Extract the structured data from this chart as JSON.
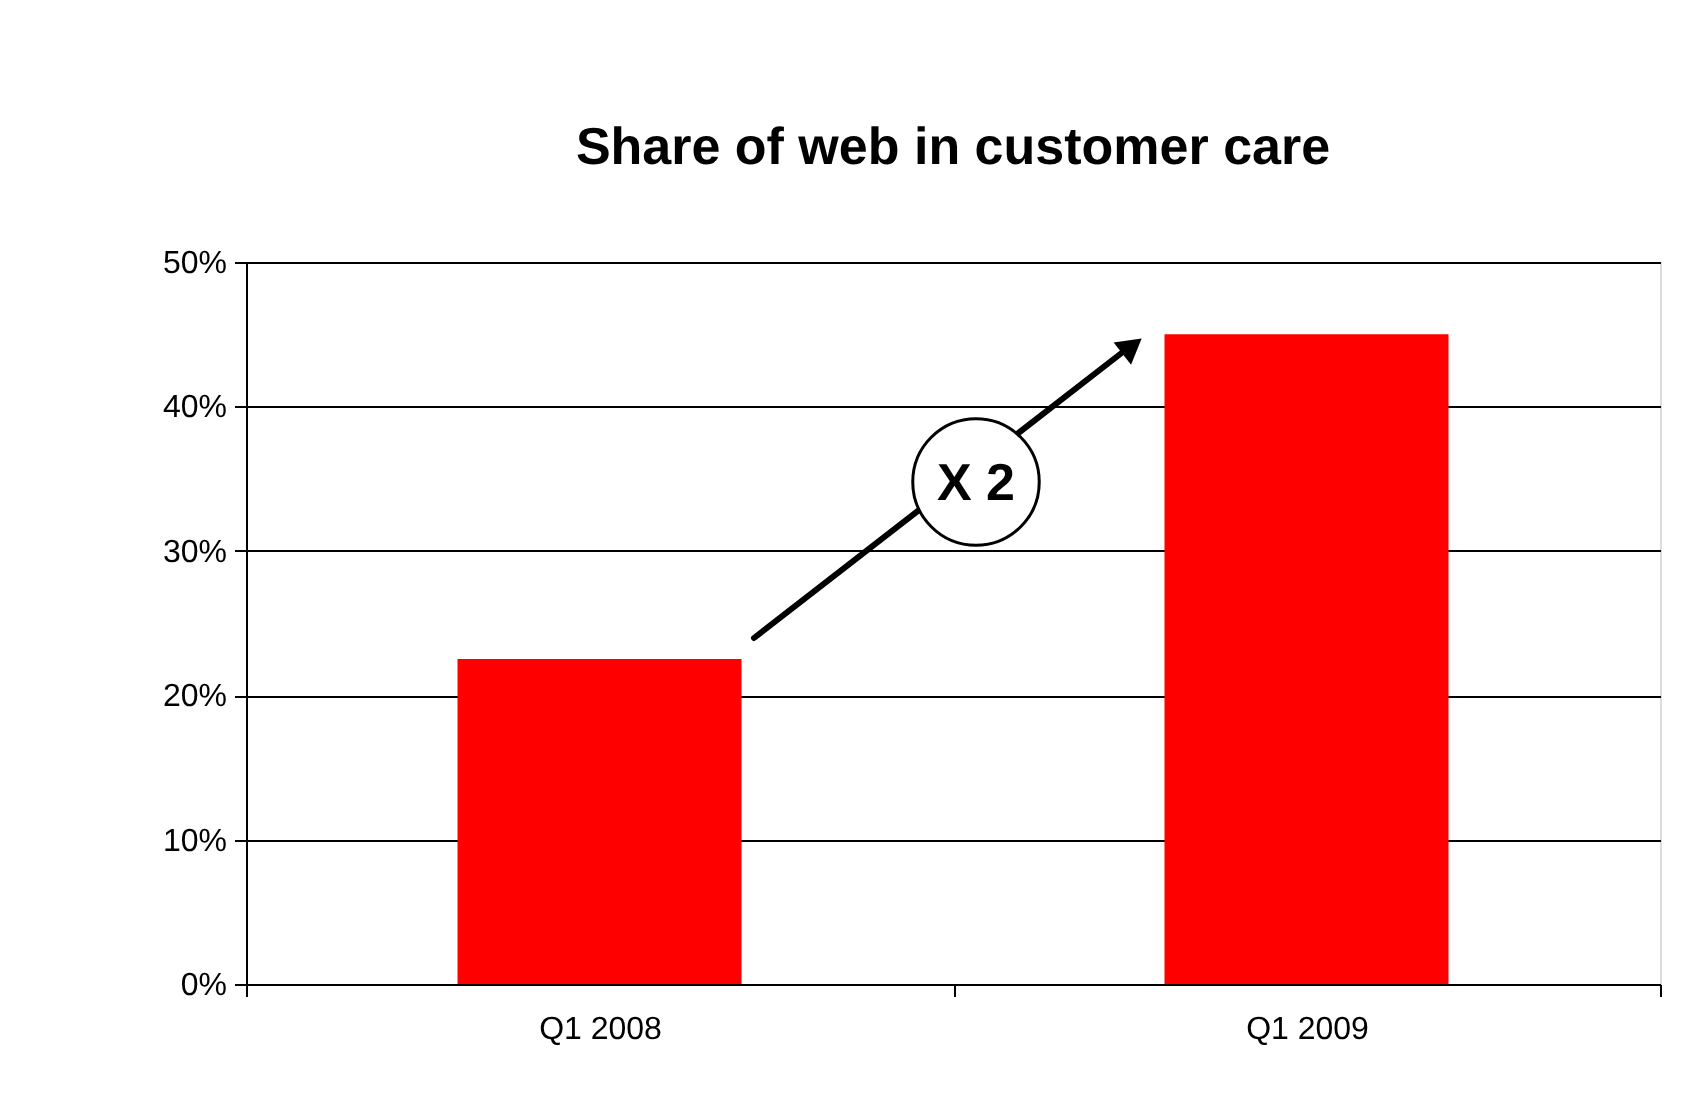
{
  "chart_data": {
    "type": "bar",
    "title": "Share of web in customer care",
    "categories": [
      "Q1 2008",
      "Q1 2009"
    ],
    "values": [
      22.5,
      45
    ],
    "color": "#ff0000",
    "ylim": [
      0,
      50
    ],
    "yticks": [
      {
        "value": 0,
        "label": "0%"
      },
      {
        "value": 10,
        "label": "10%"
      },
      {
        "value": 20,
        "label": "20%"
      },
      {
        "value": 30,
        "label": "30%"
      },
      {
        "value": 40,
        "label": "40%"
      },
      {
        "value": 50,
        "label": "50%"
      }
    ],
    "grid": "y",
    "annotations": [
      "X 2"
    ]
  }
}
